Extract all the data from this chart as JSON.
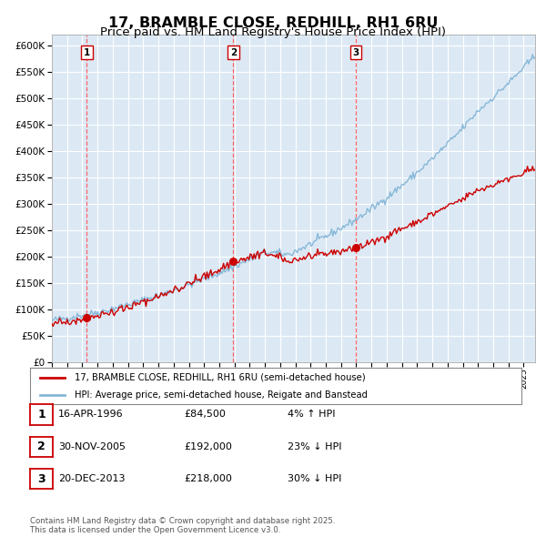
{
  "title": "17, BRAMBLE CLOSE, REDHILL, RH1 6RU",
  "subtitle": "Price paid vs. HM Land Registry's House Price Index (HPI)",
  "title_fontsize": 11.5,
  "subtitle_fontsize": 9.5,
  "bg_color": "#dce9f5",
  "fig_bg_color": "#ffffff",
  "grid_color": "#ffffff",
  "red_line_color": "#cc0000",
  "blue_line_color": "#88b8d8",
  "sale_marker_color": "#cc0000",
  "vline_color": "#ff5555",
  "ylim": [
    0,
    620000
  ],
  "ytick_step": 50000,
  "legend_label_red": "17, BRAMBLE CLOSE, REDHILL, RH1 6RU (semi-detached house)",
  "legend_label_blue": "HPI: Average price, semi-detached house, Reigate and Banstead",
  "sales": [
    {
      "label": "1",
      "date": 1996.29,
      "price": 84500
    },
    {
      "label": "2",
      "date": 2005.92,
      "price": 192000
    },
    {
      "label": "3",
      "date": 2013.97,
      "price": 218000
    }
  ],
  "table_rows": [
    {
      "num": "1",
      "date": "16-APR-1996",
      "price": "£84,500",
      "hpi": "4% ↑ HPI"
    },
    {
      "num": "2",
      "date": "30-NOV-2005",
      "price": "£192,000",
      "hpi": "23% ↓ HPI"
    },
    {
      "num": "3",
      "date": "20-DEC-2013",
      "price": "£218,000",
      "hpi": "30% ↓ HPI"
    }
  ],
  "footer": "Contains HM Land Registry data © Crown copyright and database right 2025.\nThis data is licensed under the Open Government Licence v3.0.",
  "xstart": 1994.0,
  "xend": 2025.75
}
